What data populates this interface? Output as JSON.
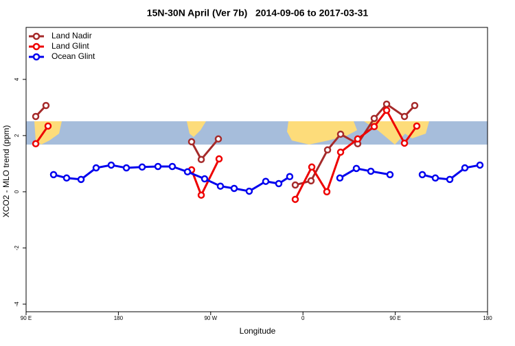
{
  "chart_data": {
    "type": "line",
    "title": "15N-30N April (Ver 7b)   2014-09-06 to 2017-03-31",
    "xlabel": "Longitude",
    "ylabel": "XCO2 - MLO trend (ppm)",
    "xlim": [
      90,
      540
    ],
    "ylim": [
      -4.27,
      5.85
    ],
    "xticks": [
      {
        "value": 90,
        "label": "90 E"
      },
      180,
      {
        "value": 270,
        "label": "90 W"
      },
      {
        "value": 360,
        "label": "0"
      },
      {
        "value": 450,
        "label": "90 E"
      },
      {
        "value": 540,
        "label": "180"
      }
    ],
    "yticks": [
      -4,
      -2,
      0,
      2,
      4
    ],
    "legend": "top-left",
    "series": [
      {
        "name": "Land Nadir",
        "color": "#a52a2a",
        "x": [
          99.4,
          109.4,
          null,
          251.4,
          260.8,
          277.5,
          null,
          352.5,
          367.9,
          384,
          396.7,
          413.4,
          429.5,
          441.6,
          459,
          469
        ],
        "values": [
          2.68,
          3.07,
          null,
          1.78,
          1.15,
          1.88,
          null,
          0.24,
          0.39,
          1.49,
          2.05,
          1.71,
          2.61,
          3.12,
          2.68,
          3.07
        ]
      },
      {
        "name": "Land Glint",
        "color": "#ee0000",
        "x": [
          99.4,
          111.4,
          null,
          251.4,
          260.8,
          278.2,
          null,
          352.5,
          368.6,
          383.3,
          396.7,
          413.4,
          429.5,
          441.6,
          459,
          471
        ],
        "values": [
          1.71,
          2.34,
          null,
          0.78,
          -0.12,
          1.17,
          null,
          -0.27,
          0.88,
          0.0,
          1.41,
          1.88,
          2.32,
          2.9,
          1.73,
          2.34
        ]
      },
      {
        "name": "Ocean Glint",
        "color": "#0000ee",
        "x": [
          116.8,
          129.5,
          143.6,
          158.3,
          173,
          187.8,
          203.2,
          218.6,
          232.6,
          247.4,
          264.1,
          279.5,
          292.9,
          307.6,
          323.7,
          336.4,
          347.1,
          null,
          396,
          412.1,
          426.2,
          444.9,
          null,
          476.4,
          489.1,
          503.2,
          517.9,
          532.6
        ],
        "values": [
          0.61,
          0.49,
          0.44,
          0.85,
          0.95,
          0.85,
          0.88,
          0.9,
          0.9,
          0.71,
          0.46,
          0.2,
          0.12,
          0.02,
          0.37,
          0.29,
          0.54,
          null,
          0.49,
          0.83,
          0.73,
          0.61,
          null,
          0.61,
          0.49,
          0.44,
          0.85,
          0.95
        ]
      }
    ]
  }
}
